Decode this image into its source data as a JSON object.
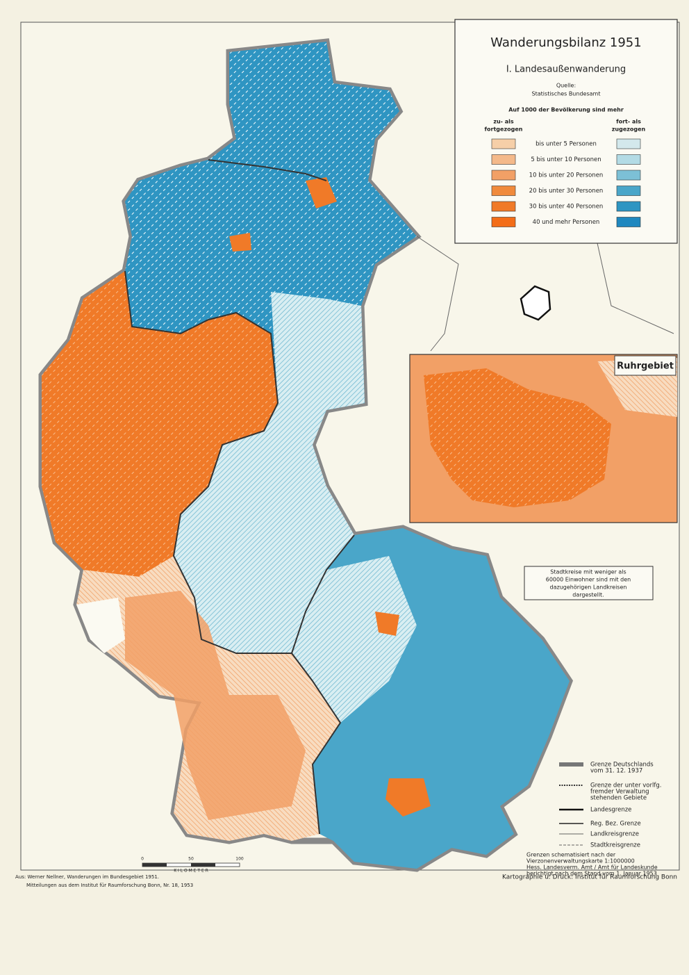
{
  "header": {
    "title": "Wanderungsbilanz 1951",
    "subtitle": "I. Landesaußenwanderung",
    "source_label": "Quelle:",
    "source": "Statistisches Bundesamt"
  },
  "legend": {
    "heading": "Auf 1000 der Bevölkerung sind mehr",
    "left_heading": [
      "zu- als",
      "fortgezogen"
    ],
    "right_heading": [
      "fort- als",
      "zugezogen"
    ],
    "classes": [
      {
        "label": "bis unter  5 Personen",
        "left_color": "#f6cfa8",
        "right_color": "#d3e8ec"
      },
      {
        "label": "5 bis unter 10 Personen",
        "left_color": "#f4b98a",
        "right_color": "#b3dbe5"
      },
      {
        "label": "10 bis unter 20 Personen",
        "left_color": "#f2a066",
        "right_color": "#7cc0d6"
      },
      {
        "label": "20 bis unter 30 Personen",
        "left_color": "#f08a3c",
        "right_color": "#4aa6c9"
      },
      {
        "label": "30 bis unter 40 Personen",
        "left_color": "#f07a28",
        "right_color": "#2e95c2"
      },
      {
        "label": "40 und mehr Personen",
        "left_color": "#f36d18",
        "right_color": "#1f88bf"
      }
    ]
  },
  "inset": {
    "title": "Ruhrgebiet"
  },
  "note": [
    "Stadtkreise mit weniger als",
    "60000 Einwohner sind mit den",
    "dazugehörigen Landkreisen",
    "dargestellt."
  ],
  "line_legend": [
    [
      "Grenze Deutschlands",
      "vom 31. 12. 1937"
    ],
    [
      "Grenze der unter vorlfg.",
      "fremder Verwaltung",
      "stehenden Gebiete"
    ],
    [
      "Landesgrenze"
    ],
    [
      "Reg. Bez. Grenze"
    ],
    [
      "Landkreisgrenze"
    ],
    [
      "Stadtkreisgrenze"
    ]
  ],
  "notes": [
    "Grenzen schematisiert nach der",
    "Vierzonenverwaltungskarte 1:1000000",
    "Hess. Landesverm. Amt / Amt für Landeskunde",
    "berichtigt nach dem Stand vom 1. Januar 1953"
  ],
  "scale": {
    "ticks": [
      "0",
      "50",
      "100"
    ],
    "unit": "K I L O M E T E R"
  },
  "printer": "Kartographie u. Druck: Institut für Raumforschung Bonn",
  "citation": [
    "Aus: Werner Nellner, Wanderungen im Bundesgebiet 1951.",
    "Mitteilungen aus dem Institut für Raumforschung Bonn, Nr. 18, 1953"
  ]
}
